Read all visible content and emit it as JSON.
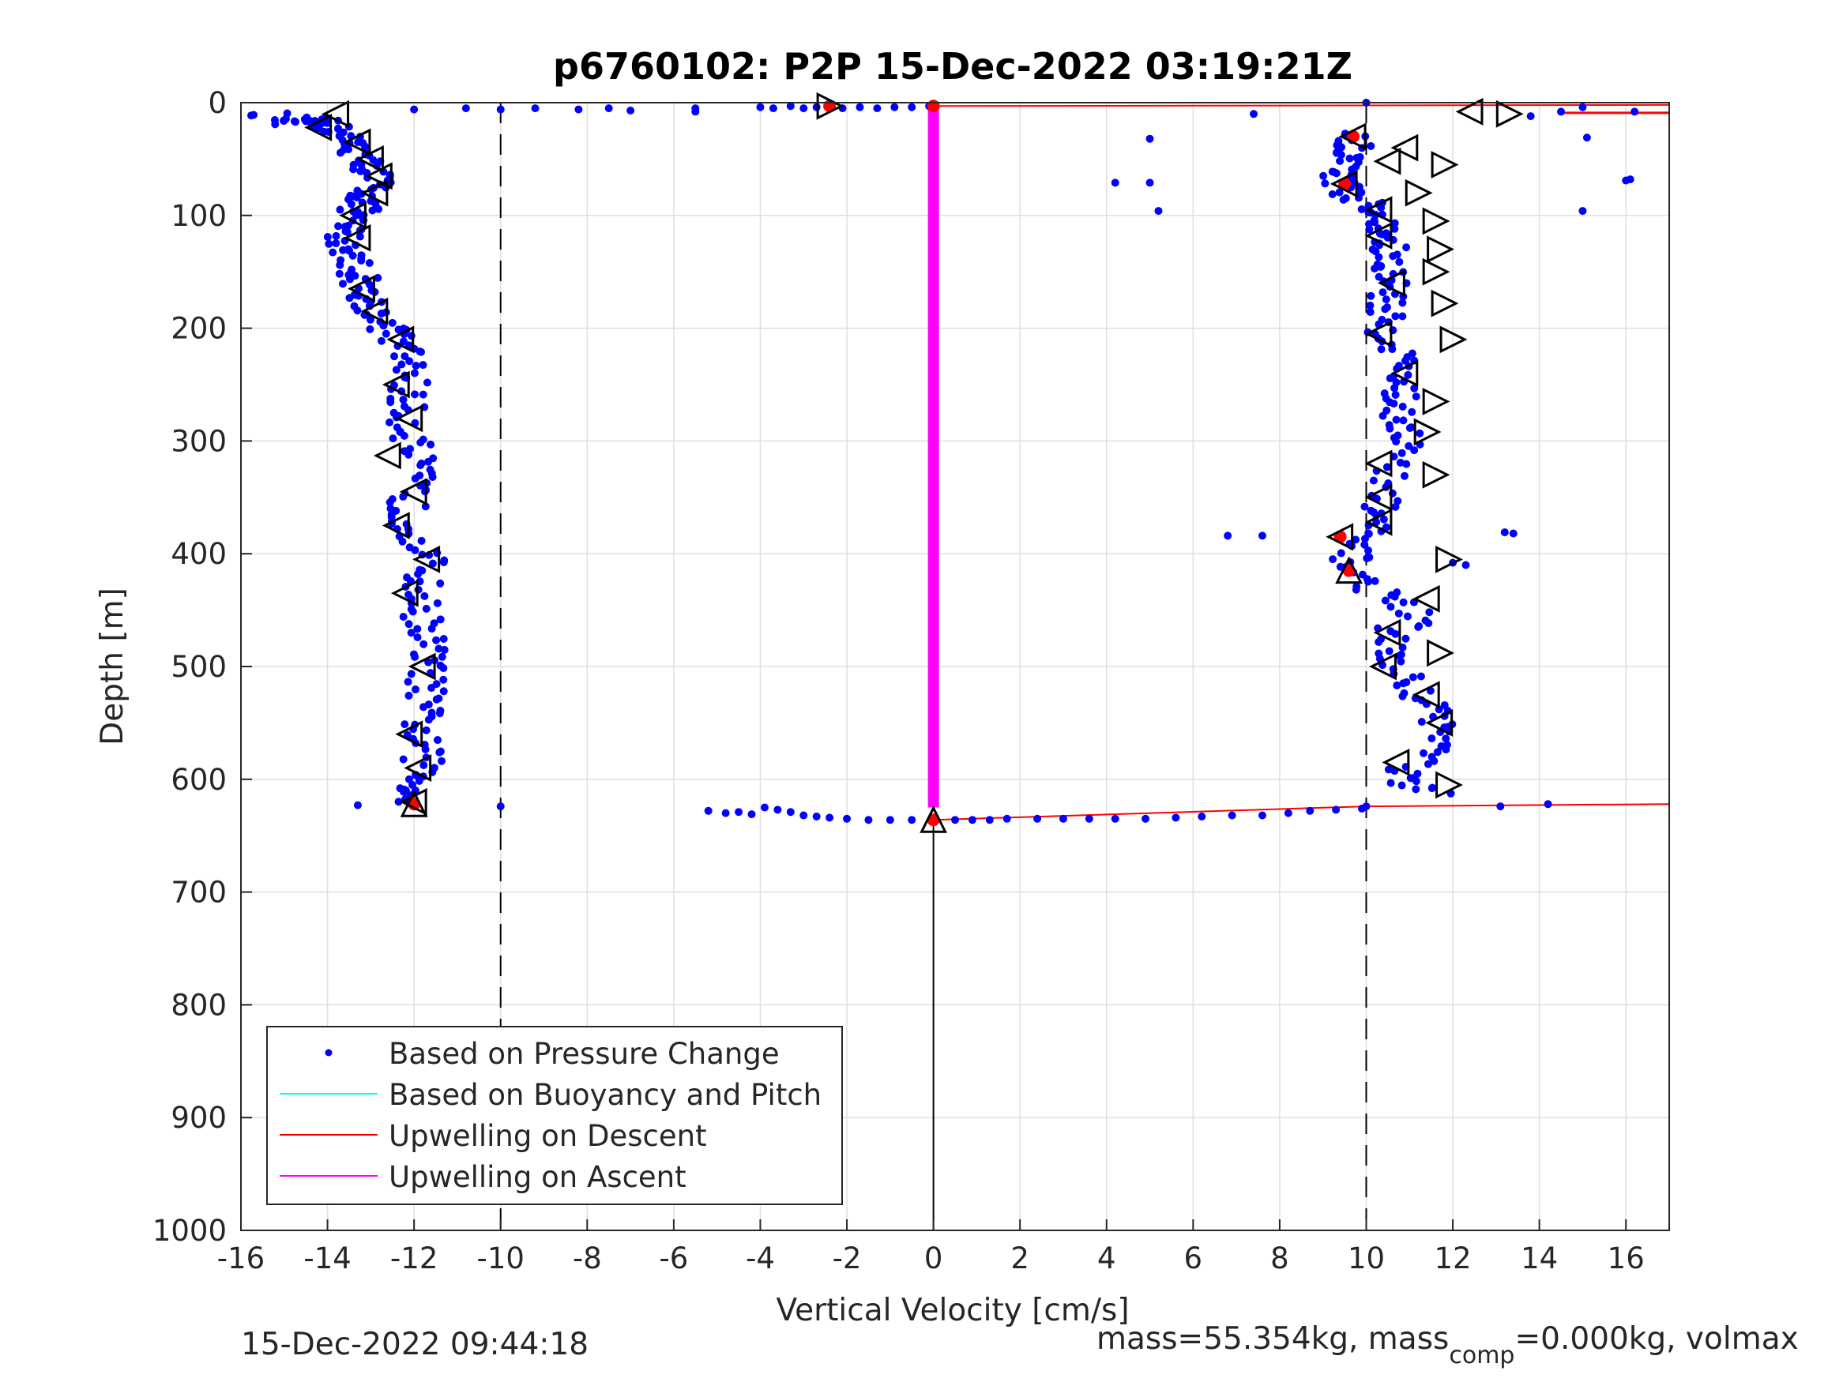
{
  "chart_data": {
    "type": "scatter",
    "title": "p6760102: P2P 15-Dec-2022 03:19:21Z",
    "xlabel": "Vertical Velocity [cm/s]",
    "ylabel": "Depth [m]",
    "xlim": [
      -16,
      17
    ],
    "ylim": [
      0,
      1000
    ],
    "y_reversed": true,
    "grid": true,
    "x_ticks": [
      -16,
      -14,
      -12,
      -10,
      -8,
      -6,
      -4,
      -2,
      0,
      2,
      4,
      6,
      8,
      10,
      12,
      14,
      16
    ],
    "y_ticks": [
      0,
      100,
      200,
      300,
      400,
      500,
      600,
      700,
      800,
      900,
      1000
    ],
    "x_tick_labels": [
      "-16",
      "-14",
      "-12",
      "-10",
      "-8",
      "-6",
      "-4",
      "-2",
      "0",
      "2",
      "4",
      "6",
      "8",
      "10",
      "12",
      "14",
      "16"
    ],
    "y_tick_labels": [
      "0",
      "100",
      "200",
      "300",
      "400",
      "500",
      "600",
      "700",
      "800",
      "900",
      "1000"
    ],
    "legend_position": "bottom-left",
    "legend": [
      {
        "label": "Based on Pressure Change",
        "color": "#0000ff",
        "marker": "dot"
      },
      {
        "label": "Based on Buoyancy and Pitch",
        "color": "#00ffff",
        "marker": "line"
      },
      {
        "label": "Upwelling on Descent",
        "color": "#ff0000",
        "marker": "line"
      },
      {
        "label": "Upwelling on Ascent",
        "color": "#ff00ff",
        "marker": "line"
      }
    ],
    "reference_lines": [
      {
        "x": -10,
        "style": "dashed",
        "color": "#000000"
      },
      {
        "x": 10,
        "style": "dashed",
        "color": "#000000"
      },
      {
        "x": 0,
        "style": "solid",
        "color": "#000000",
        "depth_range": [
          636,
          1000
        ]
      }
    ],
    "descent_profile": [
      [
        -15.4,
        10
      ],
      [
        -15.0,
        18
      ],
      [
        -14.6,
        17
      ],
      [
        -14.4,
        14
      ],
      [
        -14.1,
        18
      ],
      [
        -13.9,
        22
      ],
      [
        -13.7,
        28
      ],
      [
        -13.5,
        35
      ],
      [
        -13.3,
        42
      ],
      [
        -13.2,
        50
      ],
      [
        -13.0,
        58
      ],
      [
        -12.9,
        65
      ],
      [
        -12.9,
        72
      ],
      [
        -13.0,
        80
      ],
      [
        -13.2,
        88
      ],
      [
        -13.3,
        95
      ],
      [
        -13.5,
        103
      ],
      [
        -13.6,
        112
      ],
      [
        -13.6,
        120
      ],
      [
        -13.5,
        130
      ],
      [
        -13.4,
        140
      ],
      [
        -13.3,
        150
      ],
      [
        -13.2,
        160
      ],
      [
        -13.2,
        170
      ],
      [
        -13.0,
        180
      ],
      [
        -12.8,
        190
      ],
      [
        -12.6,
        200
      ],
      [
        -12.4,
        210
      ],
      [
        -12.2,
        222
      ],
      [
        -12.1,
        235
      ],
      [
        -12.1,
        248
      ],
      [
        -12.2,
        262
      ],
      [
        -12.2,
        275
      ],
      [
        -12.1,
        290
      ],
      [
        -12.0,
        305
      ],
      [
        -12.0,
        320
      ],
      [
        -12.0,
        335
      ],
      [
        -12.1,
        350
      ],
      [
        -12.2,
        365
      ],
      [
        -12.0,
        380
      ],
      [
        -11.8,
        395
      ],
      [
        -11.7,
        410
      ],
      [
        -11.8,
        425
      ],
      [
        -11.9,
        440
      ],
      [
        -11.8,
        455
      ],
      [
        -11.7,
        470
      ],
      [
        -11.7,
        485
      ],
      [
        -11.7,
        500
      ],
      [
        -11.7,
        515
      ],
      [
        -11.8,
        530
      ],
      [
        -11.8,
        545
      ],
      [
        -11.9,
        560
      ],
      [
        -11.8,
        575
      ],
      [
        -11.8,
        590
      ],
      [
        -11.9,
        603
      ],
      [
        -12.0,
        613
      ],
      [
        -12.1,
        622
      ]
    ],
    "ascent_profile": [
      [
        9.5,
        28
      ],
      [
        9.7,
        38
      ],
      [
        9.6,
        48
      ],
      [
        9.5,
        58
      ],
      [
        9.4,
        68
      ],
      [
        9.5,
        78
      ],
      [
        10.0,
        88
      ],
      [
        10.2,
        98
      ],
      [
        10.3,
        108
      ],
      [
        10.4,
        118
      ],
      [
        10.5,
        128
      ],
      [
        10.4,
        140
      ],
      [
        10.5,
        152
      ],
      [
        10.6,
        165
      ],
      [
        10.5,
        178
      ],
      [
        10.4,
        190
      ],
      [
        10.5,
        205
      ],
      [
        10.7,
        220
      ],
      [
        10.9,
        235
      ],
      [
        10.8,
        250
      ],
      [
        10.7,
        262
      ],
      [
        10.8,
        278
      ],
      [
        11.0,
        290
      ],
      [
        10.9,
        305
      ],
      [
        10.5,
        325
      ],
      [
        10.4,
        345
      ],
      [
        10.3,
        360
      ],
      [
        10.2,
        372
      ],
      [
        9.8,
        385
      ],
      [
        9.6,
        400
      ],
      [
        9.7,
        412
      ],
      [
        9.9,
        425
      ],
      [
        10.8,
        440
      ],
      [
        11.2,
        455
      ],
      [
        10.6,
        470
      ],
      [
        10.5,
        485
      ],
      [
        10.6,
        500
      ],
      [
        11.0,
        515
      ],
      [
        11.4,
        530
      ],
      [
        11.7,
        545
      ],
      [
        11.8,
        560
      ],
      [
        11.6,
        575
      ],
      [
        10.9,
        590
      ],
      [
        10.8,
        605
      ],
      [
        11.7,
        612
      ]
    ],
    "surface_points": [
      [
        -12.0,
        6
      ],
      [
        -10.8,
        5
      ],
      [
        -10.0,
        6
      ],
      [
        -9.2,
        5
      ],
      [
        -8.2,
        6
      ],
      [
        -7.5,
        5
      ],
      [
        -7.0,
        7
      ],
      [
        -5.5,
        5
      ],
      [
        -5.5,
        8
      ],
      [
        -4.0,
        4
      ],
      [
        -3.7,
        5
      ],
      [
        -3.3,
        3
      ],
      [
        -3.0,
        5
      ],
      [
        -2.7,
        4
      ],
      [
        -2.1,
        5
      ],
      [
        -1.7,
        4
      ],
      [
        -1.3,
        5
      ],
      [
        -0.9,
        4
      ],
      [
        -0.5,
        4
      ],
      [
        -0.1,
        3
      ]
    ],
    "bottom_points": [
      [
        -5.2,
        628
      ],
      [
        -4.8,
        630
      ],
      [
        -4.5,
        629
      ],
      [
        -4.2,
        631
      ],
      [
        -3.9,
        625
      ],
      [
        -3.6,
        627
      ],
      [
        -3.3,
        629
      ],
      [
        -3.0,
        632
      ],
      [
        -2.7,
        633
      ],
      [
        -2.4,
        634
      ],
      [
        -2.0,
        635
      ],
      [
        -1.5,
        636
      ],
      [
        -1.0,
        636
      ],
      [
        -0.5,
        636
      ],
      [
        0.5,
        636
      ],
      [
        0.9,
        636
      ],
      [
        1.3,
        636
      ],
      [
        1.7,
        635
      ],
      [
        2.4,
        635
      ],
      [
        3.0,
        635
      ],
      [
        3.6,
        635
      ],
      [
        4.2,
        635
      ],
      [
        4.9,
        635
      ],
      [
        5.6,
        634
      ],
      [
        6.2,
        633
      ],
      [
        6.9,
        632
      ],
      [
        7.6,
        632
      ],
      [
        8.2,
        630
      ],
      [
        8.7,
        628
      ],
      [
        9.3,
        627
      ],
      [
        9.9,
        626
      ],
      [
        10.0,
        624
      ],
      [
        -10.0,
        624
      ],
      [
        -13.3,
        623
      ],
      [
        13.1,
        624
      ],
      [
        14.2,
        622
      ]
    ],
    "outliers": [
      [
        7.4,
        10
      ],
      [
        5.0,
        32
      ],
      [
        4.2,
        71
      ],
      [
        5.0,
        71
      ],
      [
        5.2,
        96
      ],
      [
        6.8,
        384
      ],
      [
        7.6,
        384
      ],
      [
        13.2,
        381
      ],
      [
        13.4,
        382
      ],
      [
        12.0,
        408
      ],
      [
        12.3,
        410
      ],
      [
        15.1,
        31
      ],
      [
        16.0,
        69
      ],
      [
        16.1,
        68
      ],
      [
        15.0,
        96
      ],
      [
        16.2,
        8
      ],
      [
        15.0,
        4
      ],
      [
        14.5,
        8
      ],
      [
        13.8,
        12
      ],
      [
        10.0,
        0
      ]
    ],
    "descent_upwelling_line": {
      "color": "#ff0000",
      "points": [
        [
          0,
          3
        ],
        [
          17,
          2
        ],
        [
          0,
          636
        ],
        [
          10.0,
          624
        ],
        [
          17,
          622
        ]
      ]
    },
    "ascent_upwelling_bar": {
      "color": "#ff00ff",
      "x": 0,
      "depth_range": [
        0,
        625
      ]
    },
    "triangle_markers_left": [
      [
        -14.2,
        22
      ],
      [
        -13.8,
        10
      ],
      [
        -13.3,
        35
      ],
      [
        -13.0,
        50
      ],
      [
        -12.8,
        65
      ],
      [
        -12.9,
        80
      ],
      [
        -13.4,
        100
      ],
      [
        -13.3,
        120
      ],
      [
        -13.2,
        165
      ],
      [
        -12.9,
        185
      ],
      [
        -12.3,
        210
      ],
      [
        -12.4,
        250
      ],
      [
        -12.1,
        280
      ],
      [
        -12.6,
        313
      ],
      [
        -12.0,
        345
      ],
      [
        -12.4,
        375
      ],
      [
        -11.7,
        405
      ],
      [
        -12.2,
        435
      ],
      [
        -11.8,
        500
      ],
      [
        -12.1,
        560
      ],
      [
        -11.9,
        590
      ],
      [
        -12.0,
        620
      ],
      [
        12.4,
        8
      ],
      [
        9.7,
        30
      ],
      [
        10.9,
        40
      ],
      [
        10.5,
        52
      ],
      [
        9.5,
        72
      ],
      [
        10.3,
        95
      ],
      [
        10.3,
        118
      ],
      [
        10.6,
        160
      ],
      [
        10.3,
        205
      ],
      [
        10.9,
        240
      ],
      [
        10.3,
        320
      ],
      [
        10.3,
        350
      ],
      [
        10.3,
        372
      ],
      [
        9.4,
        385
      ],
      [
        11.4,
        440
      ],
      [
        10.5,
        470
      ],
      [
        10.4,
        500
      ],
      [
        11.4,
        525
      ],
      [
        11.7,
        550
      ],
      [
        10.7,
        585
      ]
    ],
    "triangle_markers_right": [
      [
        -2.4,
        3
      ],
      [
        13.3,
        10
      ],
      [
        11.8,
        55
      ],
      [
        11.2,
        80
      ],
      [
        11.6,
        105
      ],
      [
        11.7,
        130
      ],
      [
        11.6,
        150
      ],
      [
        11.8,
        178
      ],
      [
        12.0,
        210
      ],
      [
        11.6,
        265
      ],
      [
        11.4,
        292
      ],
      [
        11.6,
        330
      ],
      [
        11.9,
        405
      ],
      [
        11.7,
        488
      ],
      [
        11.9,
        605
      ]
    ],
    "triangle_markers_up": [
      [
        9.6,
        415
      ],
      [
        0.0,
        636
      ],
      [
        -12.0,
        622
      ]
    ],
    "highlighted_markers": [
      [
        -2.4,
        3
      ],
      [
        0.0,
        3
      ],
      [
        9.7,
        30
      ],
      [
        9.5,
        72
      ],
      [
        9.4,
        385
      ],
      [
        9.6,
        415
      ],
      [
        0.0,
        636
      ],
      [
        -12.0,
        622
      ]
    ]
  },
  "footer": {
    "timestamp": "15-Dec-2022 09:44:18",
    "mass_prefix": "mass=55.354kg, mass",
    "mass_subscript": "comp",
    "mass_suffix": "=0.000kg, volmax"
  }
}
